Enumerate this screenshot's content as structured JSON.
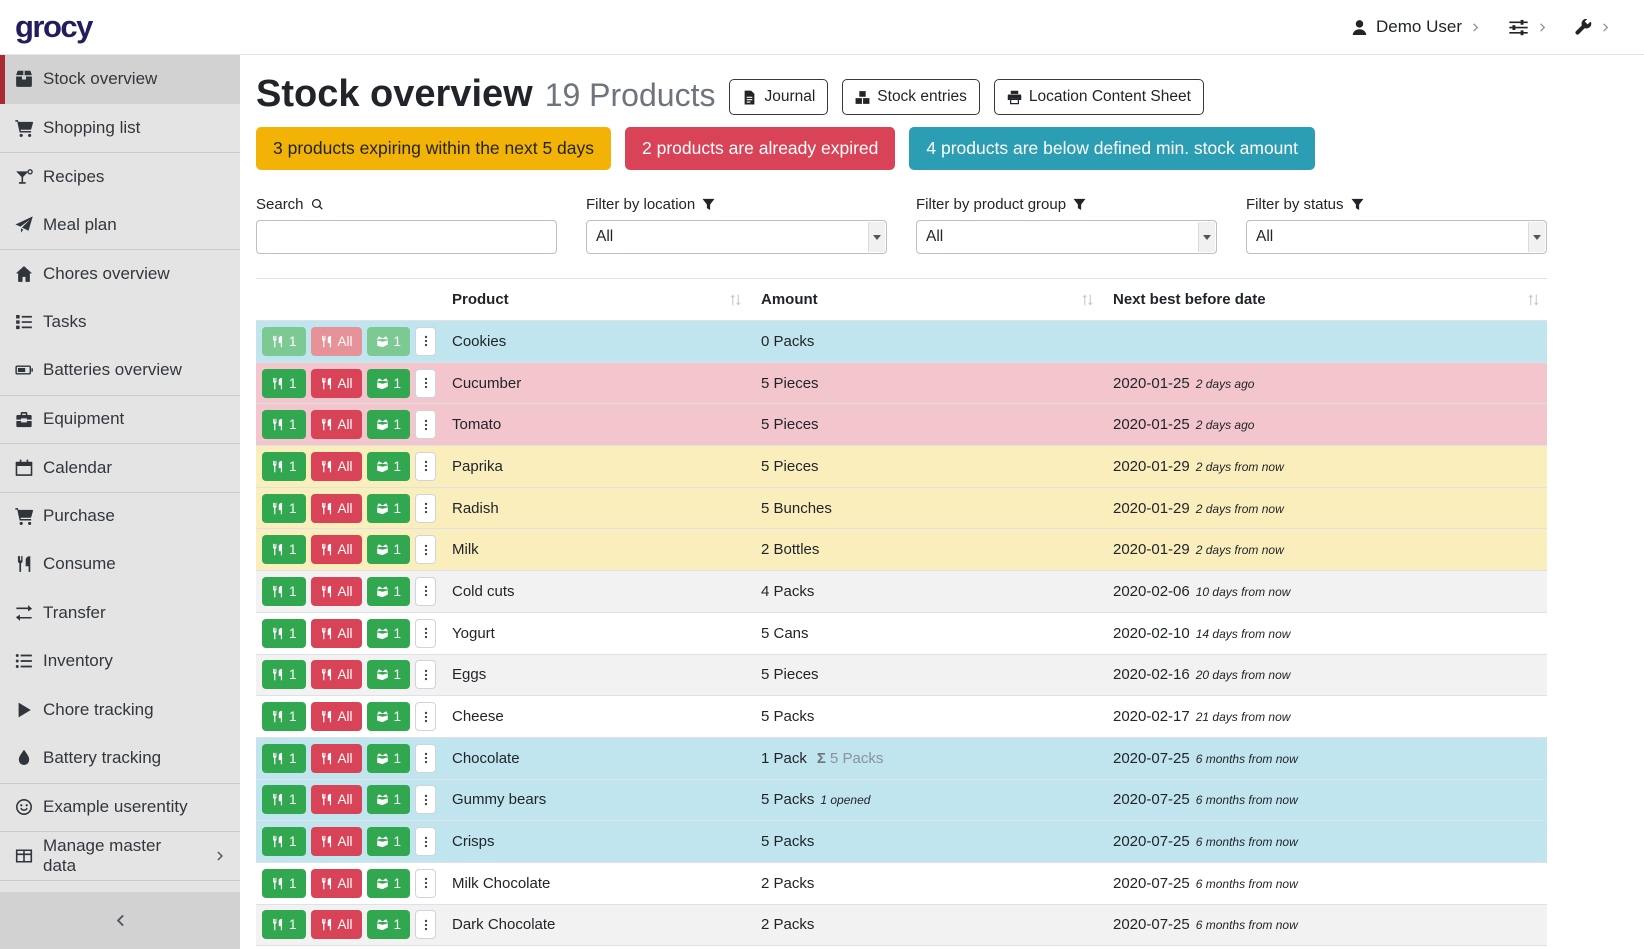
{
  "theme": {
    "accent_red": "#a72a35",
    "green": "#31a74f",
    "red": "#d84357",
    "teal": "#2b9eb3",
    "yellow": "#f2b306",
    "row_belowmin": "#c0e5ee",
    "row_expired": "#f3c6cd",
    "row_expiring": "#fbeebd"
  },
  "topbar": {
    "brand": "grocy",
    "user_label": "Demo User",
    "user_icon": "person-icon",
    "settings_icon": "sliders-icon",
    "admin_icon": "wrench-icon"
  },
  "sidebar": {
    "items": [
      {
        "label": "Stock overview",
        "icon": "box-icon",
        "active": true
      },
      {
        "label": "Shopping list",
        "icon": "cart-icon"
      },
      {
        "label": "Recipes",
        "icon": "cocktail-icon",
        "divider_before": true
      },
      {
        "label": "Meal plan",
        "icon": "paper-plane-icon"
      },
      {
        "label": "Chores overview",
        "icon": "home-icon",
        "divider_before": true
      },
      {
        "label": "Tasks",
        "icon": "tasks-icon"
      },
      {
        "label": "Batteries overview",
        "icon": "battery-icon"
      },
      {
        "label": "Equipment",
        "icon": "toolbox-icon",
        "divider_before": true
      },
      {
        "label": "Calendar",
        "icon": "calendar-icon",
        "divider_before": true
      },
      {
        "label": "Purchase",
        "icon": "cart-icon",
        "divider_before": true
      },
      {
        "label": "Consume",
        "icon": "utensils-icon"
      },
      {
        "label": "Transfer",
        "icon": "transfer-icon"
      },
      {
        "label": "Inventory",
        "icon": "list-icon"
      },
      {
        "label": "Chore tracking",
        "icon": "play-icon"
      },
      {
        "label": "Battery tracking",
        "icon": "droplet-icon"
      },
      {
        "label": "Example userentity",
        "icon": "smiley-icon",
        "divider_before": true
      },
      {
        "label": "Manage master data",
        "icon": "table-icon",
        "divider_before": true,
        "has_chevron": true
      }
    ],
    "collapse_icon": "chevron-left-icon"
  },
  "page": {
    "title": "Stock overview",
    "subtitle": "19 Products",
    "buttons": [
      {
        "label": "Journal",
        "icon": "file-icon"
      },
      {
        "label": "Stock entries",
        "icon": "boxes-icon"
      },
      {
        "label": "Location Content Sheet",
        "icon": "print-icon"
      }
    ],
    "banners": [
      {
        "name": "expiring-soon",
        "text": "3 products expiring within the next 5 days",
        "bg": "#f2b306",
        "fg": "#212529"
      },
      {
        "name": "expired",
        "text": "2 products are already expired",
        "bg": "#d84357",
        "fg": "#ffffff"
      },
      {
        "name": "below-min",
        "text": "4 products are below defined min. stock amount",
        "bg": "#2b9eb3",
        "fg": "#ffffff"
      }
    ],
    "filters": {
      "search_label": "Search",
      "search_value": "",
      "location_label": "Filter by location",
      "location_value": "All",
      "product_group_label": "Filter by product group",
      "product_group_value": "All",
      "status_label": "Filter by status",
      "status_value": "All"
    },
    "table": {
      "columns": [
        "Product",
        "Amount",
        "Next best before date"
      ],
      "row_buttons": {
        "consume_one_label": "1",
        "consume_all_label": "All",
        "open_one_label": "1"
      },
      "rows": [
        {
          "product": "Cookies",
          "amount": "0 Packs",
          "date": "",
          "date_rel": "",
          "status": "belowmin",
          "buttons_muted": true
        },
        {
          "product": "Cucumber",
          "amount": "5 Pieces",
          "date": "2020-01-25",
          "date_rel": "2 days ago",
          "status": "expired"
        },
        {
          "product": "Tomato",
          "amount": "5 Pieces",
          "date": "2020-01-25",
          "date_rel": "2 days ago",
          "status": "expired"
        },
        {
          "product": "Paprika",
          "amount": "5 Pieces",
          "date": "2020-01-29",
          "date_rel": "2 days from now",
          "status": "expiring"
        },
        {
          "product": "Radish",
          "amount": "5 Bunches",
          "date": "2020-01-29",
          "date_rel": "2 days from now",
          "status": "expiring"
        },
        {
          "product": "Milk",
          "amount": "2 Bottles",
          "date": "2020-01-29",
          "date_rel": "2 days from now",
          "status": "expiring"
        },
        {
          "product": "Cold cuts",
          "amount": "4 Packs",
          "date": "2020-02-06",
          "date_rel": "10 days from now",
          "status": "none"
        },
        {
          "product": "Yogurt",
          "amount": "5 Cans",
          "date": "2020-02-10",
          "date_rel": "14 days from now",
          "status": "none"
        },
        {
          "product": "Eggs",
          "amount": "5 Pieces",
          "date": "2020-02-16",
          "date_rel": "20 days from now",
          "status": "none"
        },
        {
          "product": "Cheese",
          "amount": "5 Packs",
          "date": "2020-02-17",
          "date_rel": "21 days from now",
          "status": "none"
        },
        {
          "product": "Chocolate",
          "amount": "1 Pack",
          "amount_aggregated": "5 Packs",
          "date": "2020-07-25",
          "date_rel": "6 months from now",
          "status": "belowmin"
        },
        {
          "product": "Gummy bears",
          "amount": "5 Packs",
          "amount_opened": "1 opened",
          "date": "2020-07-25",
          "date_rel": "6 months from now",
          "status": "belowmin"
        },
        {
          "product": "Crisps",
          "amount": "5 Packs",
          "date": "2020-07-25",
          "date_rel": "6 months from now",
          "status": "belowmin"
        },
        {
          "product": "Milk Chocolate",
          "amount": "2 Packs",
          "date": "2020-07-25",
          "date_rel": "6 months from now",
          "status": "none"
        },
        {
          "product": "Dark Chocolate",
          "amount": "2 Packs",
          "date": "2020-07-25",
          "date_rel": "6 months from now",
          "status": "none"
        },
        {
          "product": "",
          "amount": "",
          "date": "",
          "date_rel": "",
          "status": "none",
          "partial": true
        }
      ]
    }
  }
}
